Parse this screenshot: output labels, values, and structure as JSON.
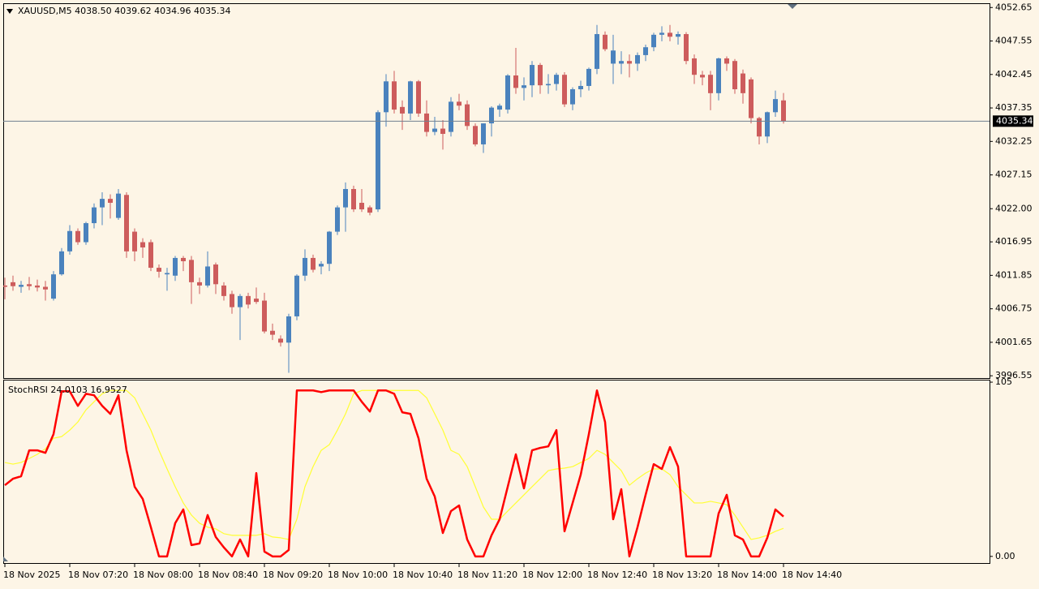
{
  "chart_data": [
    {
      "type": "candlestick",
      "title": "XAUUSD,M5  4038.50 4039.62 4034.96 4035.34",
      "categories": [
        "18 Nov 2025",
        null,
        null,
        null,
        null,
        null,
        null,
        null,
        "18 Nov 07:20",
        null,
        null,
        null,
        null,
        null,
        null,
        null,
        "18 Nov 08:00",
        null,
        null,
        null,
        null,
        null,
        null,
        null,
        "18 Nov 08:40",
        null,
        null,
        null,
        null,
        null,
        null,
        null,
        "18 Nov 09:20",
        null,
        null,
        null,
        null,
        null,
        null,
        null,
        "18 Nov 10:00",
        null,
        null,
        null,
        null,
        null,
        null,
        null,
        "18 Nov 10:40",
        null,
        null,
        null,
        null,
        null,
        null,
        null,
        "18 Nov 11:20",
        null,
        null,
        null,
        null,
        null,
        null,
        null,
        "18 Nov 12:00",
        null,
        null,
        null,
        null,
        null,
        null,
        null,
        "18 Nov 12:40",
        null,
        null,
        null,
        null,
        null,
        null,
        null,
        "18 Nov 13:20",
        null,
        null,
        null,
        null,
        null,
        null,
        null,
        "18 Nov 14:00",
        null,
        null,
        null,
        null,
        null,
        null,
        null,
        "18 Nov 14:40"
      ],
      "open": [
        4010.3,
        4010.8,
        4010.1,
        4010.5,
        4010.3,
        4010.1,
        4008.3,
        4012.0,
        4015.5,
        4018.6,
        4016.9,
        4019.8,
        4022.2,
        4023.5,
        4020.6,
        4024.1,
        4018.5,
        4016.9,
        4016.9,
        4013.0,
        4012.0,
        4011.8,
        4014.5,
        4014.2,
        4010.8,
        4010.3,
        4013.5,
        4010.3,
        4009.0,
        4007.0,
        4008.7,
        4008.3,
        4008.0,
        4003.4,
        4002.2,
        4001.6,
        4005.6,
        4011.8,
        4014.5,
        4013.2,
        4013.6,
        4018.5,
        4022.2,
        4025.0,
        4022.9,
        4022.2,
        4021.9,
        4036.7,
        4041.4,
        4037.5,
        4036.5,
        4041.4,
        4036.5,
        4033.7,
        4034.2,
        4033.7,
        4038.3,
        4037.9,
        4034.6,
        4031.8,
        4035.0,
        4037.1,
        4037.1,
        4042.3,
        4040.4,
        4040.8,
        4043.9,
        4040.8,
        4041.0,
        4042.4,
        4037.9,
        4040.2,
        4040.7,
        4043.3,
        4048.5,
        4044.1,
        4044.1,
        4044.5,
        4044.1,
        4045.4,
        4046.6,
        4048.5,
        4048.8,
        4048.2,
        4048.6,
        4044.9,
        4042.4,
        4042.4,
        4039.6,
        4044.9,
        4044.5,
        4042.6,
        4041.7,
        4035.8,
        4033.0,
        4036.7,
        4038.5
      ],
      "high": [
        4011.5,
        4011.8,
        4011.0,
        4011.6,
        4011.2,
        4011.0,
        4012.5,
        4016.0,
        4019.5,
        4019.0,
        4020.0,
        4022.8,
        4024.5,
        4024.2,
        4025.0,
        4024.5,
        4019.0,
        4017.5,
        4017.3,
        4013.5,
        4013.0,
        4014.8,
        4014.8,
        4014.8,
        4011.5,
        4015.5,
        4013.8,
        4010.8,
        4009.5,
        4009.0,
        4009.2,
        4010.0,
        4009.2,
        4004.5,
        4002.7,
        4006.0,
        4012.0,
        4015.8,
        4015.0,
        4014.0,
        4018.6,
        4022.5,
        4026.0,
        4025.5,
        4025.0,
        4022.5,
        4037.0,
        4042.5,
        4043.0,
        4038.5,
        4041.5,
        4041.6,
        4038.5,
        4036.0,
        4035.5,
        4039.0,
        4039.5,
        4038.5,
        4035.0,
        4035.0,
        4037.6,
        4038.0,
        4042.5,
        4046.5,
        4042.0,
        4044.5,
        4044.2,
        4042.5,
        4042.7,
        4042.8,
        4040.5,
        4041.5,
        4043.5,
        4050.0,
        4049.0,
        4048.5,
        4046.0,
        4045.5,
        4045.8,
        4047.0,
        4048.8,
        4049.8,
        4050.0,
        4049.0,
        4048.9,
        4045.5,
        4043.0,
        4043.0,
        4045.0,
        4045.2,
        4044.8,
        4043.2,
        4042.0,
        4036.0,
        4036.8,
        4040.0,
        4039.62
      ],
      "low": [
        4008.2,
        4009.5,
        4009.2,
        4009.6,
        4009.4,
        4008.0,
        4008.0,
        4011.8,
        4015.0,
        4016.5,
        4016.5,
        4019.0,
        4019.5,
        4020.5,
        4020.3,
        4014.5,
        4014.0,
        4014.5,
        4012.5,
        4011.5,
        4009.5,
        4011.0,
        4012.5,
        4007.5,
        4009.0,
        4010.0,
        4009.0,
        4008.0,
        4006.0,
        4002.0,
        4006.8,
        4007.5,
        4003.0,
        4002.0,
        4001.0,
        3997.0,
        4005.0,
        4011.0,
        4012.3,
        4012.0,
        4012.5,
        4018.0,
        4018.5,
        4021.5,
        4021.5,
        4021.0,
        4021.5,
        4034.5,
        4036.5,
        4034.0,
        4035.5,
        4036.0,
        4033.0,
        4033.2,
        4031.0,
        4033.0,
        4037.0,
        4034.0,
        4031.5,
        4030.5,
        4033.0,
        4036.0,
        4036.5,
        4039.5,
        4038.5,
        4039.0,
        4039.5,
        4039.5,
        4040.0,
        4037.5,
        4037.0,
        4039.0,
        4040.0,
        4042.5,
        4046.0,
        4041.0,
        4042.5,
        4042.0,
        4043.0,
        4044.5,
        4046.0,
        4047.5,
        4047.5,
        4047.0,
        4044.0,
        4041.0,
        4040.8,
        4037.0,
        4038.5,
        4043.0,
        4039.5,
        4038.0,
        4035.0,
        4031.8,
        4032.0,
        4036.0,
        4034.96
      ],
      "close": [
        4010.1,
        4010.2,
        4010.4,
        4010.2,
        4010.0,
        4009.7,
        4012.0,
        4015.5,
        4018.6,
        4016.9,
        4019.8,
        4022.2,
        4023.5,
        4022.9,
        4024.3,
        4015.5,
        4015.5,
        4016.1,
        4013.0,
        4012.4,
        4012.2,
        4014.5,
        4014.0,
        4010.8,
        4010.3,
        4013.2,
        4010.5,
        4008.7,
        4007.0,
        4008.7,
        4007.4,
        4007.8,
        4003.3,
        4002.8,
        4001.6,
        4005.6,
        4011.8,
        4014.5,
        4012.7,
        4013.6,
        4018.5,
        4022.2,
        4025.0,
        4021.9,
        4021.9,
        4021.4,
        4036.7,
        4041.4,
        4037.1,
        4036.5,
        4041.4,
        4036.5,
        4033.7,
        4034.2,
        4033.4,
        4038.3,
        4037.7,
        4034.6,
        4031.8,
        4035.0,
        4037.4,
        4037.7,
        4042.3,
        4040.4,
        4040.8,
        4043.9,
        4040.8,
        4041.0,
        4042.4,
        4037.9,
        4040.2,
        4040.7,
        4043.3,
        4048.6,
        4046.3,
        4046.1,
        4044.5,
        4044.1,
        4045.4,
        4046.6,
        4048.5,
        4048.8,
        4048.2,
        4048.6,
        4044.5,
        4042.4,
        4042.0,
        4039.6,
        4044.9,
        4044.1,
        4040.2,
        4039.6,
        4035.8,
        4033.0,
        4036.7,
        4038.7,
        4035.34
      ],
      "up_color": "#4a82bd",
      "down_color": "#cd5c5c",
      "ylim": [
        3996.2,
        4053.3
      ],
      "yticks": [
        4052.65,
        4047.55,
        4042.45,
        4037.35,
        4032.25,
        4027.15,
        {
          "value": 4022,
          "label": "4022.00"
        },
        4016.95,
        4011.85,
        4006.75,
        4001.65,
        3996.55
      ],
      "current_price": 4035.34
    },
    {
      "type": "line",
      "title": "StochRSI 24.0103 16.9527",
      "ylim": [
        -4,
        106
      ],
      "yticks": [
        105,
        {
          "value": 0,
          "label": "0.00"
        }
      ],
      "series": [
        {
          "color": "#ffff33",
          "values": [
            56.6,
            55.6,
            56.6,
            59.0,
            61.5,
            64.9,
            71.2,
            72.2,
            76.1,
            81.0,
            88.3,
            93.2,
            98.0,
            100,
            100,
            100,
            95.6,
            85.9,
            76.1,
            63.9,
            52.7,
            42.0,
            32.2,
            24.9,
            20.0,
            17.6,
            16.6,
            13.7,
            12.7,
            12.7,
            12.7,
            12.7,
            13.7,
            11.7,
            11.2,
            10.2,
            22.4,
            42.0,
            54.1,
            63.9,
            67.3,
            76.1,
            85.9,
            98.0,
            100,
            100,
            100,
            100,
            100,
            100,
            100,
            100,
            95.6,
            85.9,
            76.1,
            63.9,
            61.5,
            54.1,
            42.0,
            29.8,
            22.4,
            22.4,
            27.3,
            32.2,
            37.1,
            42.0,
            46.8,
            51.7,
            52.7,
            53.2,
            54.1,
            56.6,
            59.0,
            63.9,
            61.5,
            56.6,
            51.7,
            42.9,
            46.8,
            50.2,
            52.7,
            52.7,
            49.3,
            42.0,
            37.1,
            32.2,
            32.2,
            33.2,
            32.2,
            31.2,
            24.9,
            17.6,
            10.2,
            11.2,
            12.7,
            15.1,
            16.9527
          ]
        },
        {
          "color": "#ff0000",
          "values": [
            42.9,
            46.8,
            48.3,
            63.9,
            63.9,
            62.4,
            73.7,
            99.5,
            99.5,
            90.7,
            98.0,
            97.1,
            90.7,
            85.9,
            97.1,
            63.9,
            42.0,
            34.6,
            17.6,
            0,
            0,
            20.0,
            28.3,
            6.8,
            7.8,
            24.9,
            11.7,
            5.4,
            0,
            10.2,
            0,
            50.2,
            2.9,
            0,
            0,
            3.9,
            100,
            100,
            100,
            99,
            100,
            100,
            100,
            100,
            93.2,
            87.3,
            100,
            100,
            98.0,
            86.8,
            85.9,
            71.2,
            46.8,
            36.1,
            14.1,
            27.3,
            30.7,
            10.2,
            0,
            0,
            12.7,
            22.4,
            42.0,
            61.5,
            41.0,
            63.9,
            65.4,
            66.3,
            76.1,
            15.1,
            32.2,
            49.3,
            73.7,
            100,
            81.0,
            22.4,
            40.5,
            0,
            17.6,
            37.1,
            55.6,
            52.7,
            65.9,
            54.1,
            0,
            0,
            0,
            0,
            25.9,
            37.1,
            12.7,
            10.2,
            0,
            0,
            11.2,
            28.3,
            24.0103
          ]
        }
      ]
    }
  ]
}
